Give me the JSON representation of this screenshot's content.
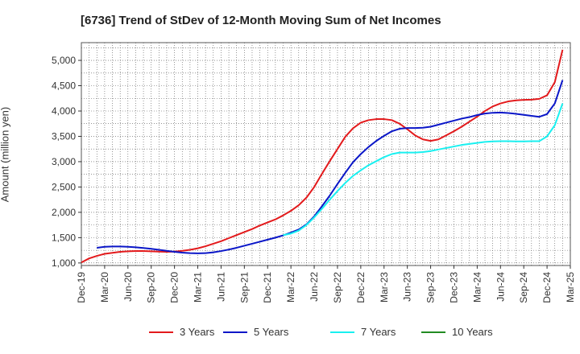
{
  "chart_data": {
    "type": "line",
    "title": "[6736]  Trend of StDev of 12-Month Moving Sum of Net Incomes",
    "xlabel": "",
    "ylabel": "Amount (million yen)",
    "ylim": [
      950,
      5350
    ],
    "yticks": [
      1000,
      1500,
      2000,
      2500,
      3000,
      3500,
      4000,
      4500,
      5000
    ],
    "ytick_labels": [
      "1,000",
      "1,500",
      "2,000",
      "2,500",
      "3,000",
      "3,500",
      "4,000",
      "4,500",
      "5,000"
    ],
    "xtick_labels": [
      "Dec-19",
      "Mar-20",
      "Jun-20",
      "Sep-20",
      "Dec-20",
      "Mar-21",
      "Jun-21",
      "Sep-21",
      "Dec-21",
      "Mar-22",
      "Jun-22",
      "Sep-22",
      "Dec-22",
      "Mar-23",
      "Jun-23",
      "Sep-23",
      "Dec-23",
      "Mar-24",
      "Jun-24",
      "Sep-24",
      "Dec-24",
      "Mar-25"
    ],
    "grid": true,
    "legend_position": "bottom",
    "series": [
      {
        "name": "3 Years",
        "color": "#e31a1c",
        "start_month": "Dec-19",
        "values": [
          1010,
          1090,
          1140,
          1180,
          1200,
          1220,
          1230,
          1235,
          1235,
          1230,
          1225,
          1220,
          1225,
          1240,
          1260,
          1290,
          1330,
          1380,
          1430,
          1490,
          1550,
          1610,
          1670,
          1740,
          1800,
          1860,
          1940,
          2030,
          2140,
          2290,
          2500,
          2760,
          3010,
          3250,
          3490,
          3660,
          3770,
          3820,
          3840,
          3840,
          3820,
          3750,
          3640,
          3520,
          3440,
          3410,
          3440,
          3520,
          3600,
          3690,
          3790,
          3890,
          4000,
          4090,
          4150,
          4190,
          4210,
          4220,
          4225,
          4240,
          4310,
          4570,
          5210
        ]
      },
      {
        "name": "5 Years",
        "color": "#0a16c8",
        "start_month": "Feb-20",
        "values": [
          1300,
          1320,
          1325,
          1325,
          1320,
          1310,
          1295,
          1280,
          1260,
          1240,
          1220,
          1205,
          1195,
          1190,
          1195,
          1210,
          1235,
          1265,
          1300,
          1340,
          1380,
          1420,
          1460,
          1500,
          1545,
          1600,
          1660,
          1760,
          1920,
          2120,
          2330,
          2560,
          2780,
          2990,
          3150,
          3290,
          3410,
          3510,
          3600,
          3650,
          3665,
          3665,
          3670,
          3690,
          3730,
          3770,
          3810,
          3850,
          3880,
          3920,
          3950,
          3965,
          3970,
          3960,
          3945,
          3925,
          3905,
          3885,
          3940,
          4150,
          4610
        ]
      },
      {
        "name": "7 Years",
        "color": "#19f0f0",
        "start_month": "Feb-22",
        "values": [
          1550,
          1580,
          1640,
          1750,
          1900,
          2070,
          2250,
          2420,
          2580,
          2720,
          2830,
          2930,
          3010,
          3090,
          3150,
          3180,
          3180,
          3180,
          3190,
          3210,
          3240,
          3270,
          3300,
          3330,
          3350,
          3370,
          3390,
          3400,
          3405,
          3405,
          3400,
          3400,
          3405,
          3405,
          3500,
          3720,
          4150
        ]
      },
      {
        "name": "10 Years",
        "color": "#228b22",
        "start_month": "",
        "values": []
      }
    ]
  }
}
